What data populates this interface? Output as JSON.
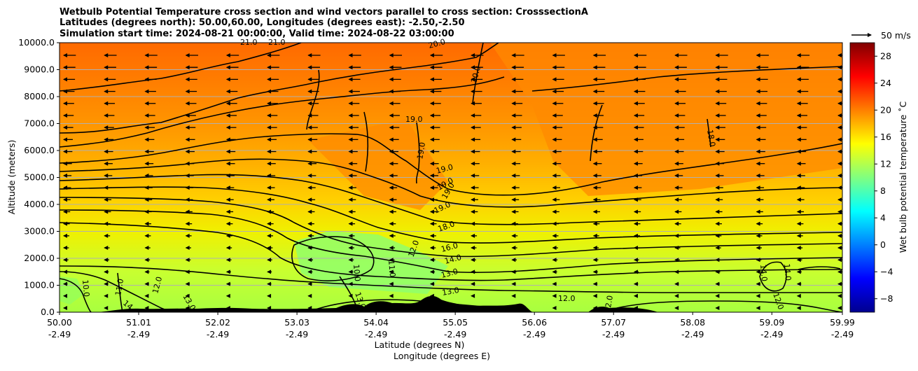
{
  "chart_data": {
    "type": "heatmap",
    "title_lines": [
      "Wetbulb Potential Temperature cross section and wind vectors parallel to cross section: CrosssectionA",
      "Latitudes (degrees north): 50.00,60.00, Longitudes (degrees east): -2.50,-2.50",
      "Simulation start time: 2024-08-21 00:00:00, Valid time: 2024-08-22 03:00:00"
    ],
    "xlabel_lat": "Latitude (degrees N)",
    "xlabel_lon": "Longitude (degrees E)",
    "ylabel": "Altitude (meters)",
    "x_range": [
      50.0,
      59.99
    ],
    "ylim": [
      0,
      10000
    ],
    "x_ticks": [
      {
        "lat": "50.00",
        "lon": "-2.49"
      },
      {
        "lat": "51.01",
        "lon": "-2.49"
      },
      {
        "lat": "52.02",
        "lon": "-2.49"
      },
      {
        "lat": "53.03",
        "lon": "-2.49"
      },
      {
        "lat": "54.04",
        "lon": "-2.49"
      },
      {
        "lat": "55.05",
        "lon": "-2.49"
      },
      {
        "lat": "56.06",
        "lon": "-2.49"
      },
      {
        "lat": "57.07",
        "lon": "-2.49"
      },
      {
        "lat": "58.08",
        "lon": "-2.49"
      },
      {
        "lat": "59.09",
        "lon": "-2.49"
      },
      {
        "lat": "59.99",
        "lon": "-2.49"
      }
    ],
    "y_ticks": [
      "0.0",
      "1000.0",
      "2000.0",
      "3000.0",
      "4000.0",
      "5000.0",
      "6000.0",
      "7000.0",
      "8000.0",
      "9000.0",
      "10000.0"
    ],
    "grid": "horizontal",
    "colorbar": {
      "label": "Wet bulb potential temperature ˚C",
      "range": [
        -10,
        30
      ],
      "ticks": [
        "−8",
        "−4",
        "0",
        "4",
        "8",
        "12",
        "16",
        "20",
        "24",
        "28"
      ],
      "colormap": "jet"
    },
    "wind_key": {
      "label": "50 m/s"
    },
    "wind_direction": "southward (leftward along section)",
    "contour_labels": [
      "21.0",
      "21.0",
      "20.0",
      "20.0",
      "19.0",
      "19.0",
      "19.0",
      "19.0",
      "19.0",
      "19.0",
      "18.0",
      "18.0",
      "16.0",
      "14.0",
      "13.0",
      "13.0",
      "13.0",
      "13.0",
      "12.0",
      "12.0",
      "12.0",
      "12.0",
      "11.0",
      "11.0",
      "10.0",
      "10.0",
      "14.0",
      "14.0",
      "14",
      "2.0"
    ]
  }
}
